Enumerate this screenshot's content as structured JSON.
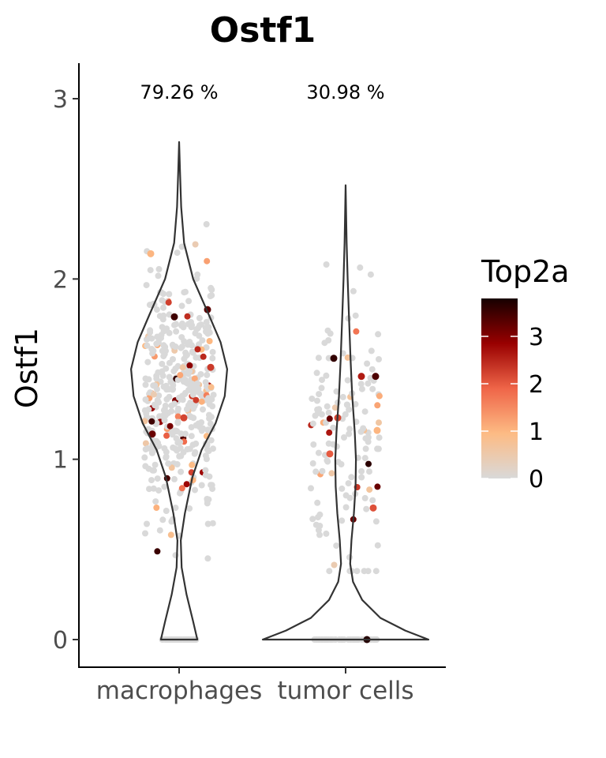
{
  "chart_data": {
    "type": "violin",
    "title": "Ostf1",
    "ylabel": "Ostf1",
    "xlabel": "",
    "ylim": [
      -0.15,
      3.2
    ],
    "y_ticks": [
      0,
      1,
      2,
      3
    ],
    "y_tick_labels": [
      "0",
      "1",
      "2",
      "3"
    ],
    "categories": [
      "macrophages",
      "tumor cells"
    ],
    "percent_labels": [
      "79.26 %",
      "30.98 %"
    ],
    "grid": false,
    "legend": {
      "title": "Top2a",
      "position": "right",
      "range": [
        0,
        3.8
      ],
      "ticks": [
        0,
        1,
        2,
        3
      ],
      "tick_labels": [
        "0",
        "1",
        "2",
        "3"
      ],
      "colors": [
        "#d9d9d9",
        "#fdbb84",
        "#ef6548",
        "#990000",
        "#160000"
      ]
    },
    "violins": [
      {
        "category": "macrophages",
        "profile": [
          [
            0,
            0.22
          ],
          [
            0.1,
            0.17
          ],
          [
            0.25,
            0.09
          ],
          [
            0.4,
            0.03
          ],
          [
            0.55,
            0.02
          ],
          [
            0.7,
            0.07
          ],
          [
            0.9,
            0.16
          ],
          [
            1.05,
            0.27
          ],
          [
            1.2,
            0.44
          ],
          [
            1.35,
            0.55
          ],
          [
            1.5,
            0.58
          ],
          [
            1.65,
            0.5
          ],
          [
            1.8,
            0.36
          ],
          [
            2.0,
            0.17
          ],
          [
            2.2,
            0.06
          ],
          [
            2.4,
            0.025
          ],
          [
            2.6,
            0.01
          ],
          [
            2.76,
            0
          ]
        ]
      },
      {
        "category": "tumor cells",
        "profile": [
          [
            0,
            1.0
          ],
          [
            0.05,
            0.72
          ],
          [
            0.12,
            0.42
          ],
          [
            0.22,
            0.2
          ],
          [
            0.32,
            0.09
          ],
          [
            0.42,
            0.055
          ],
          [
            0.55,
            0.07
          ],
          [
            0.7,
            0.1
          ],
          [
            0.85,
            0.12
          ],
          [
            1.0,
            0.125
          ],
          [
            1.15,
            0.11
          ],
          [
            1.35,
            0.08
          ],
          [
            1.55,
            0.06
          ],
          [
            1.8,
            0.04
          ],
          [
            2.0,
            0.025
          ],
          [
            2.2,
            0.012
          ],
          [
            2.52,
            0
          ]
        ]
      }
    ],
    "point_groups": [
      {
        "category": "macrophages",
        "n_zero": 70,
        "n_expr": 430,
        "mean": 1.36,
        "sd": 0.34,
        "min": 0.45,
        "max": 2.78,
        "zero_spread": 0.24,
        "expr_spread": 0.44,
        "frac_top2a": 0.12
      },
      {
        "category": "tumor cells",
        "n_zero": 60,
        "n_expr": 140,
        "mean": 1.08,
        "sd": 0.42,
        "min": 0.38,
        "max": 2.55,
        "zero_spread": 0.44,
        "expr_spread": 0.44,
        "frac_top2a": 0.14
      }
    ],
    "highlight_points": [
      {
        "category": "macrophages",
        "x": -0.06,
        "y": 1.79,
        "top2a": 3.5
      },
      {
        "category": "macrophages",
        "x": 0.36,
        "y": 1.83,
        "top2a": 3.3
      },
      {
        "category": "macrophages",
        "x": -0.34,
        "y": 1.14,
        "top2a": 3.2
      },
      {
        "category": "macrophages",
        "x": 0.4,
        "y": 1.51,
        "top2a": 2.3
      },
      {
        "category": "macrophages",
        "x": 0.06,
        "y": 1.23,
        "top2a": 2.2
      },
      {
        "category": "macrophages",
        "x": -0.36,
        "y": 2.14,
        "top2a": 1.0
      },
      {
        "category": "tumor cells",
        "x": -0.15,
        "y": 1.56,
        "top2a": 3.6
      },
      {
        "category": "tumor cells",
        "x": 0.38,
        "y": 1.46,
        "top2a": 3.4
      },
      {
        "category": "tumor cells",
        "x": 0.2,
        "y": 1.46,
        "top2a": 2.6
      },
      {
        "category": "tumor cells",
        "x": -0.1,
        "y": 1.23,
        "top2a": 2.2
      },
      {
        "category": "tumor cells",
        "x": -0.2,
        "y": 1.03,
        "top2a": 2.0
      },
      {
        "category": "tumor cells",
        "x": 0.35,
        "y": 0.73,
        "top2a": 2.1
      },
      {
        "category": "tumor cells",
        "x": 0.27,
        "y": 0.0,
        "top2a": 3.7
      },
      {
        "category": "tumor cells",
        "x": 0.4,
        "y": 1.16,
        "top2a": 1.0
      }
    ]
  }
}
